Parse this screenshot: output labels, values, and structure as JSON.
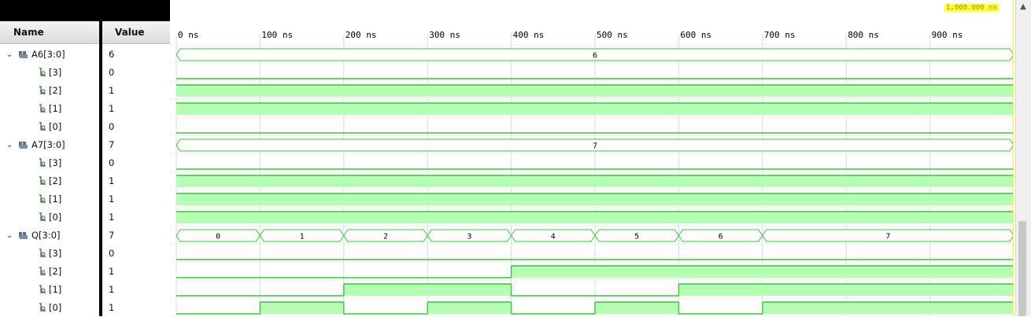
{
  "header": {
    "name": "Name",
    "value": "Value"
  },
  "ruler": {
    "ticks": [
      "0 ns",
      "100 ns",
      "200 ns",
      "300 ns",
      "400 ns",
      "500 ns",
      "600 ns",
      "700 ns",
      "800 ns",
      "900 ns"
    ],
    "cursor_readout": "1,000.000 ns"
  },
  "signals": [
    {
      "name": "A6[3:0]",
      "value": "6",
      "kind": "bus",
      "segments": [
        {
          "from": 0,
          "to": 1000,
          "label": "6"
        }
      ]
    },
    {
      "name": "[3]",
      "value": "0",
      "kind": "bit",
      "transitions": [
        [
          0,
          0
        ]
      ]
    },
    {
      "name": "[2]",
      "value": "1",
      "kind": "bit",
      "transitions": [
        [
          0,
          1
        ]
      ]
    },
    {
      "name": "[1]",
      "value": "1",
      "kind": "bit",
      "transitions": [
        [
          0,
          1
        ]
      ]
    },
    {
      "name": "[0]",
      "value": "0",
      "kind": "bit",
      "transitions": [
        [
          0,
          0
        ]
      ]
    },
    {
      "name": "A7[3:0]",
      "value": "7",
      "kind": "bus",
      "segments": [
        {
          "from": 0,
          "to": 1000,
          "label": "7"
        }
      ]
    },
    {
      "name": "[3]",
      "value": "0",
      "kind": "bit",
      "transitions": [
        [
          0,
          0
        ]
      ]
    },
    {
      "name": "[2]",
      "value": "1",
      "kind": "bit",
      "transitions": [
        [
          0,
          1
        ]
      ]
    },
    {
      "name": "[1]",
      "value": "1",
      "kind": "bit",
      "transitions": [
        [
          0,
          1
        ]
      ]
    },
    {
      "name": "[0]",
      "value": "1",
      "kind": "bit",
      "transitions": [
        [
          0,
          1
        ]
      ]
    },
    {
      "name": "Q[3:0]",
      "value": "7",
      "kind": "bus",
      "segments": [
        {
          "from": 0,
          "to": 100,
          "label": "0"
        },
        {
          "from": 100,
          "to": 200,
          "label": "1"
        },
        {
          "from": 200,
          "to": 300,
          "label": "2"
        },
        {
          "from": 300,
          "to": 400,
          "label": "3"
        },
        {
          "from": 400,
          "to": 500,
          "label": "4"
        },
        {
          "from": 500,
          "to": 600,
          "label": "5"
        },
        {
          "from": 600,
          "to": 700,
          "label": "6"
        },
        {
          "from": 700,
          "to": 1000,
          "label": "7"
        }
      ]
    },
    {
      "name": "[3]",
      "value": "0",
      "kind": "bit",
      "transitions": [
        [
          0,
          0
        ]
      ]
    },
    {
      "name": "[2]",
      "value": "1",
      "kind": "bit",
      "transitions": [
        [
          0,
          0
        ],
        [
          400,
          1
        ]
      ]
    },
    {
      "name": "[1]",
      "value": "1",
      "kind": "bit",
      "transitions": [
        [
          0,
          0
        ],
        [
          200,
          1
        ],
        [
          400,
          0
        ],
        [
          600,
          1
        ]
      ]
    },
    {
      "name": "[0]",
      "value": "1",
      "kind": "bit",
      "transitions": [
        [
          0,
          0
        ],
        [
          100,
          1
        ],
        [
          200,
          0
        ],
        [
          300,
          1
        ],
        [
          400,
          0
        ],
        [
          500,
          1
        ],
        [
          600,
          0
        ],
        [
          700,
          1
        ]
      ]
    }
  ],
  "colors": {
    "wave": "#33cc33",
    "fill": "#b4ffb4",
    "grid": "#d9d9d9",
    "cursor": "#ffff00"
  }
}
